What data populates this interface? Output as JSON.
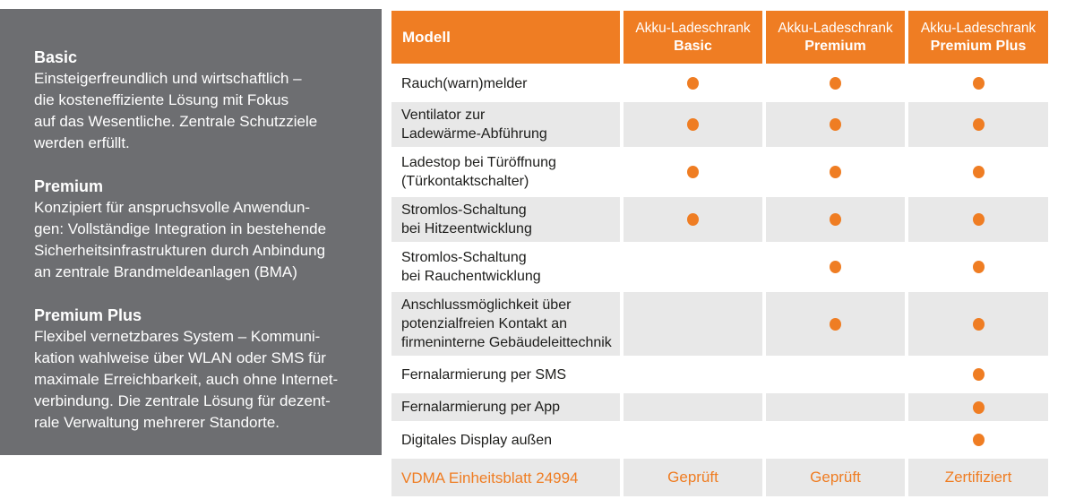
{
  "colors": {
    "accent": "#ef7d23",
    "sidebar_bg": "#6d6e71",
    "row_shade": "#e8e8e8"
  },
  "sidebar": {
    "sections": [
      {
        "title": "Basic",
        "body": "Einsteigerfreundlich und wirtschaftlich –\ndie kosteneffiziente Lösung mit Fokus\nauf das Wesentliche. Zentrale Schutzziele\nwerden erfüllt."
      },
      {
        "title": "Premium",
        "body": "Konzipiert für anspruchsvolle Anwendun-\ngen: Vollständige Integration in bestehende\nSicherheitsinfrastrukturen durch Anbindung\nan zentrale Brandmeldeanlagen (BMA)"
      },
      {
        "title": "Premium Plus",
        "body": "Flexibel vernetzbares System – Kommuni-\nkation wahlweise über WLAN oder SMS für\nmaximale Erreichbarkeit, auch ohne Internet-\nverbindung. Die zentrale Lösung für dezent-\nrale Verwaltung mehrerer Standorte."
      }
    ]
  },
  "table": {
    "header": {
      "feature_col": "Modell",
      "models": [
        {
          "line1": "Akku-Ladeschrank",
          "line2": "Basic"
        },
        {
          "line1": "Akku-Ladeschrank",
          "line2": "Premium"
        },
        {
          "line1": "Akku-Ladeschrank",
          "line2": "Premium Plus"
        }
      ]
    },
    "rows": [
      {
        "label": "Rauch(warn)melder",
        "values": [
          true,
          true,
          true
        ],
        "shaded": false
      },
      {
        "label": "Ventilator zur\nLadewärme-Abführung",
        "values": [
          true,
          true,
          true
        ],
        "shaded": true
      },
      {
        "label": "Ladestop bei Türöffnung\n(Türkontaktschalter)",
        "values": [
          true,
          true,
          true
        ],
        "shaded": false
      },
      {
        "label": "Stromlos-Schaltung\nbei Hitzeentwicklung",
        "values": [
          true,
          true,
          true
        ],
        "shaded": true
      },
      {
        "label": "Stromlos-Schaltung\nbei Rauchentwicklung",
        "values": [
          false,
          true,
          true
        ],
        "shaded": false
      },
      {
        "label": "Anschlussmöglichkeit über\npotenzialfreien Kontakt an\nfirmeninterne Gebäudeleittechnik",
        "values": [
          false,
          true,
          true
        ],
        "shaded": true
      },
      {
        "label": "Fernalarmierung per SMS",
        "values": [
          false,
          false,
          true
        ],
        "shaded": false
      },
      {
        "label": "Fernalarmierung per App",
        "values": [
          false,
          false,
          true
        ],
        "shaded": true
      },
      {
        "label": "Digitales Display außen",
        "values": [
          false,
          false,
          true
        ],
        "shaded": false
      },
      {
        "label": "VDMA Einheitsblatt 24994",
        "values": [
          "Geprüft",
          "Geprüft",
          "Zertifiziert"
        ],
        "shaded": true,
        "footer": true
      }
    ]
  }
}
